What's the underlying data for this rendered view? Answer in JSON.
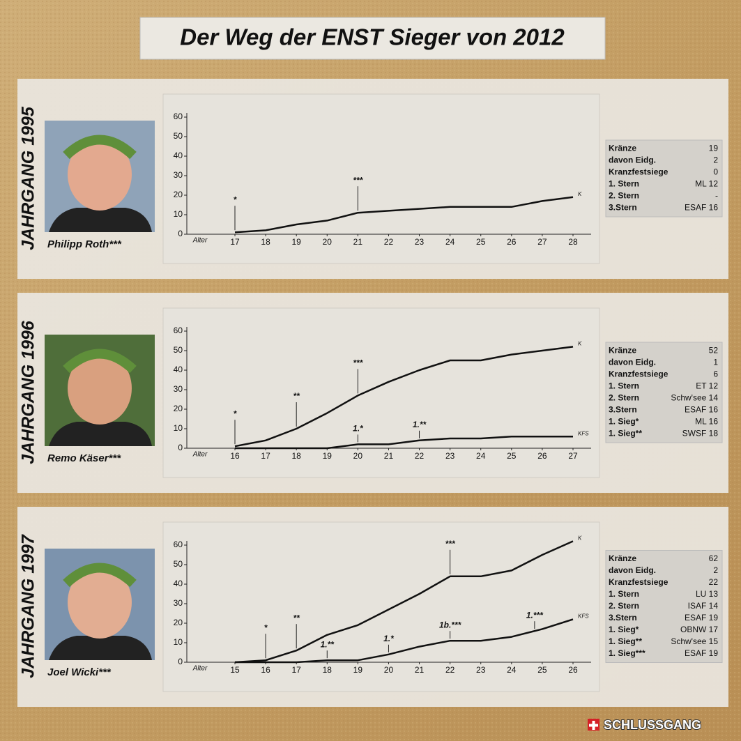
{
  "title": "Der Weg der ENST Sieger von 2012",
  "brand": "SCHLUSSGANG",
  "panels": [
    {
      "jahrgang": "JAHRGANG 1995",
      "name": "Philipp Roth***",
      "stats": [
        [
          "Kränze",
          "19"
        ],
        [
          "davon Eidg.",
          "2"
        ],
        [
          "Kranzfestsiege",
          "0"
        ],
        [
          "1. Stern",
          "ML 12"
        ],
        [
          "2. Stern",
          "-"
        ],
        [
          "3.Stern",
          "ESAF 16"
        ]
      ]
    },
    {
      "jahrgang": "JAHRGANG 1996",
      "name": "Remo Käser***",
      "stats": [
        [
          "Kränze",
          "52"
        ],
        [
          "davon Eidg.",
          "1"
        ],
        [
          "Kranzfestsiege",
          "6"
        ],
        [
          "1. Stern",
          "ET 12"
        ],
        [
          "2. Stern",
          "Schw'see 14"
        ],
        [
          "3.Stern",
          "ESAF 16"
        ],
        [
          "1. Sieg*",
          "ML 16"
        ],
        [
          "1. Sieg**",
          "SWSF 18"
        ]
      ]
    },
    {
      "jahrgang": "JAHRGANG 1997",
      "name": "Joel Wicki***",
      "stats": [
        [
          "Kränze",
          "62"
        ],
        [
          "davon Eidg.",
          "2"
        ],
        [
          "Kranzfestsiege",
          "22"
        ],
        [
          "1. Stern",
          "LU 13"
        ],
        [
          "2. Stern",
          "ISAF 14"
        ],
        [
          "3.Stern",
          "ESAF 19"
        ],
        [
          "1. Sieg*",
          "OBNW 17"
        ],
        [
          "1. Sieg**",
          "Schw'see 15"
        ],
        [
          "1. Sieg***",
          "ESAF 19"
        ]
      ]
    }
  ],
  "chart_data": [
    {
      "type": "line",
      "x_label": "Alter",
      "x": [
        17,
        18,
        19,
        20,
        21,
        22,
        23,
        24,
        25,
        26,
        27,
        28
      ],
      "xlim": [
        17,
        28
      ],
      "xticks": [
        17,
        18,
        19,
        20,
        21,
        22,
        23,
        24,
        25,
        26,
        27,
        28
      ],
      "ylim": [
        0,
        60
      ],
      "yticks": [
        0,
        10,
        20,
        30,
        40,
        50,
        60
      ],
      "series": [
        {
          "name": "K",
          "color": "#111111",
          "values": [
            1,
            2,
            5,
            7,
            11,
            12,
            13,
            14,
            14,
            14,
            17,
            19
          ],
          "annotations": [
            {
              "text": "*",
              "x": 17
            },
            {
              "text": "***",
              "x": 21
            }
          ]
        }
      ]
    },
    {
      "type": "line",
      "x_label": "Alter",
      "x": [
        16,
        17,
        18,
        19,
        20,
        21,
        22,
        23,
        24,
        25,
        26,
        27
      ],
      "xlim": [
        16,
        27
      ],
      "xticks": [
        16,
        17,
        18,
        19,
        20,
        21,
        22,
        23,
        24,
        25,
        26,
        27
      ],
      "ylim": [
        0,
        60
      ],
      "yticks": [
        0,
        10,
        20,
        30,
        40,
        50,
        60
      ],
      "series": [
        {
          "name": "K",
          "color": "#111111",
          "values": [
            1,
            4,
            10,
            18,
            27,
            34,
            40,
            45,
            45,
            48,
            50,
            52
          ],
          "annotations": [
            {
              "text": "*",
              "x": 16
            },
            {
              "text": "**",
              "x": 18
            },
            {
              "text": "***",
              "x": 20
            }
          ]
        },
        {
          "name": "KFS",
          "color": "#111111",
          "values": [
            0,
            0,
            0,
            0,
            2,
            2,
            4,
            5,
            5,
            6,
            6,
            6
          ],
          "annotations": [
            {
              "text": "1.*",
              "x": 20
            },
            {
              "text": "1.**",
              "x": 22
            }
          ]
        }
      ]
    },
    {
      "type": "line",
      "x_label": "Alter",
      "x": [
        15,
        16,
        17,
        18,
        19,
        20,
        21,
        22,
        23,
        24,
        25,
        26
      ],
      "xlim": [
        15,
        26
      ],
      "xticks": [
        15,
        16,
        17,
        18,
        19,
        20,
        21,
        22,
        23,
        24,
        25,
        26
      ],
      "ylim": [
        0,
        60
      ],
      "yticks": [
        0,
        10,
        20,
        30,
        40,
        50,
        60
      ],
      "series": [
        {
          "name": "K",
          "color": "#111111",
          "values": [
            0,
            1,
            6,
            14,
            19,
            27,
            35,
            44,
            44,
            47,
            55,
            62
          ],
          "annotations": [
            {
              "text": "*",
              "x": 16
            },
            {
              "text": "**",
              "x": 17
            },
            {
              "text": "***",
              "x": 22
            }
          ]
        },
        {
          "name": "KFS",
          "color": "#111111",
          "values": [
            0,
            0,
            0,
            1,
            1,
            4,
            8,
            11,
            11,
            13,
            17,
            22
          ],
          "annotations": [
            {
              "text": "1.**",
              "x": 18
            },
            {
              "text": "1.*",
              "x": 20
            },
            {
              "text": "1b.***",
              "x": 22
            },
            {
              "text": "1.***",
              "x": 24.75
            }
          ]
        }
      ]
    }
  ]
}
